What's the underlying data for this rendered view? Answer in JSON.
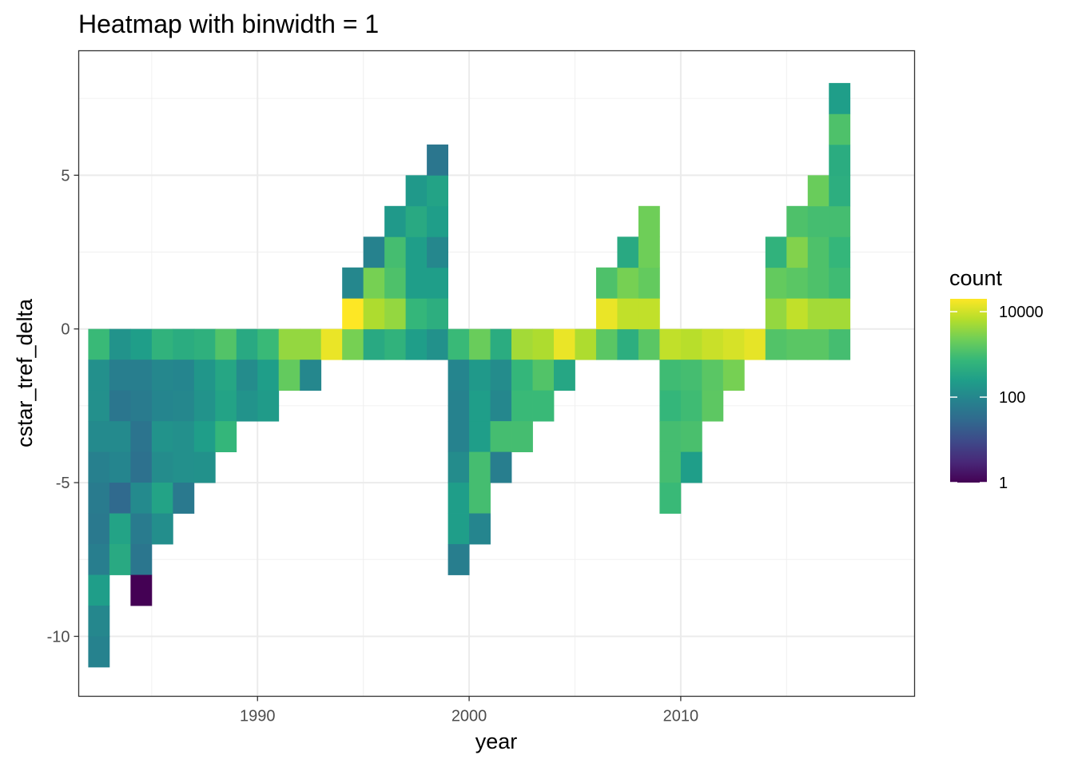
{
  "chart_data": {
    "type": "heatmap",
    "title": "Heatmap with binwidth = 1",
    "xlabel": "year",
    "ylabel": "cstar_tref_delta",
    "xlim": [
      1981.55,
      2021.05
    ],
    "ylim": [
      -11.95,
      9.05
    ],
    "x_ticks": [
      1990,
      2000,
      2010
    ],
    "x_tick_labels": [
      "1990",
      "2000",
      "2010"
    ],
    "y_ticks": [
      -10,
      -5,
      0,
      5
    ],
    "y_tick_labels": [
      "-10",
      "-5",
      "0",
      "5"
    ],
    "binwidth": 1,
    "fill_scale": "log10",
    "legend": {
      "title": "count",
      "breaks": [
        1,
        100,
        10000
      ],
      "labels": [
        "1",
        "100",
        "10000"
      ],
      "range": [
        1,
        20000
      ],
      "position": "right"
    },
    "colormap": "viridis",
    "colors": {
      "viridis": [
        "#440154",
        "#482878",
        "#3e4989",
        "#31688e",
        "#26828e",
        "#1f9e89",
        "#35b779",
        "#6ece58",
        "#b5de2b",
        "#fde725"
      ]
    },
    "cells": [
      {
        "x": 1983,
        "y": -1,
        "count": 800
      },
      {
        "x": 1983,
        "y": -2,
        "count": 140
      },
      {
        "x": 1983,
        "y": -3,
        "count": 140
      },
      {
        "x": 1983,
        "y": -4,
        "count": 110
      },
      {
        "x": 1983,
        "y": -5,
        "count": 75
      },
      {
        "x": 1983,
        "y": -6,
        "count": 60
      },
      {
        "x": 1983,
        "y": -7,
        "count": 55
      },
      {
        "x": 1983,
        "y": -8,
        "count": 70
      },
      {
        "x": 1983,
        "y": -9,
        "count": 250
      },
      {
        "x": 1983,
        "y": -10,
        "count": 100
      },
      {
        "x": 1983,
        "y": -11,
        "count": 80
      },
      {
        "x": 1984,
        "y": -1,
        "count": 160
      },
      {
        "x": 1984,
        "y": -2,
        "count": 70
      },
      {
        "x": 1984,
        "y": -3,
        "count": 50
      },
      {
        "x": 1984,
        "y": -4,
        "count": 110
      },
      {
        "x": 1984,
        "y": -5,
        "count": 90
      },
      {
        "x": 1984,
        "y": -6,
        "count": 30
      },
      {
        "x": 1984,
        "y": -7,
        "count": 300
      },
      {
        "x": 1984,
        "y": -8,
        "count": 400
      },
      {
        "x": 1985,
        "y": -1,
        "count": 250
      },
      {
        "x": 1985,
        "y": -2,
        "count": 70
      },
      {
        "x": 1985,
        "y": -3,
        "count": 60
      },
      {
        "x": 1985,
        "y": -4,
        "count": 45
      },
      {
        "x": 1985,
        "y": -5,
        "count": 40
      },
      {
        "x": 1985,
        "y": -6,
        "count": 110
      },
      {
        "x": 1985,
        "y": -7,
        "count": 60
      },
      {
        "x": 1985,
        "y": -8,
        "count": 50
      },
      {
        "x": 1985,
        "y": -9,
        "count": 1
      },
      {
        "x": 1986,
        "y": -1,
        "count": 600
      },
      {
        "x": 1986,
        "y": -2,
        "count": 100
      },
      {
        "x": 1986,
        "y": -3,
        "count": 90
      },
      {
        "x": 1986,
        "y": -4,
        "count": 160
      },
      {
        "x": 1986,
        "y": -5,
        "count": 120
      },
      {
        "x": 1986,
        "y": -6,
        "count": 300
      },
      {
        "x": 1986,
        "y": -7,
        "count": 130
      },
      {
        "x": 1987,
        "y": -1,
        "count": 450
      },
      {
        "x": 1987,
        "y": -2,
        "count": 90
      },
      {
        "x": 1987,
        "y": -3,
        "count": 100
      },
      {
        "x": 1987,
        "y": -4,
        "count": 140
      },
      {
        "x": 1987,
        "y": -5,
        "count": 140
      },
      {
        "x": 1987,
        "y": -6,
        "count": 55
      },
      {
        "x": 1988,
        "y": -1,
        "count": 550
      },
      {
        "x": 1988,
        "y": -2,
        "count": 180
      },
      {
        "x": 1988,
        "y": -3,
        "count": 160
      },
      {
        "x": 1988,
        "y": -4,
        "count": 250
      },
      {
        "x": 1988,
        "y": -5,
        "count": 150
      },
      {
        "x": 1989,
        "y": -1,
        "count": 1300
      },
      {
        "x": 1989,
        "y": -2,
        "count": 350
      },
      {
        "x": 1989,
        "y": -3,
        "count": 300
      },
      {
        "x": 1989,
        "y": -4,
        "count": 700
      },
      {
        "x": 1990,
        "y": -1,
        "count": 400
      },
      {
        "x": 1990,
        "y": -2,
        "count": 120
      },
      {
        "x": 1990,
        "y": -3,
        "count": 160
      },
      {
        "x": 1991,
        "y": -1,
        "count": 800
      },
      {
        "x": 1991,
        "y": -2,
        "count": 250
      },
      {
        "x": 1991,
        "y": -3,
        "count": 220
      },
      {
        "x": 1992,
        "y": -1,
        "count": 4000
      },
      {
        "x": 1992,
        "y": -2,
        "count": 1800
      },
      {
        "x": 1993,
        "y": -1,
        "count": 4000
      },
      {
        "x": 1993,
        "y": -2,
        "count": 100
      },
      {
        "x": 1994,
        "y": -1,
        "count": 15000
      },
      {
        "x": 1995,
        "y": -1,
        "count": 2500
      },
      {
        "x": 1995,
        "y": 0,
        "count": 20000
      },
      {
        "x": 1995,
        "y": 1,
        "count": 100
      },
      {
        "x": 1996,
        "y": -1,
        "count": 400
      },
      {
        "x": 1996,
        "y": 0,
        "count": 6000
      },
      {
        "x": 1996,
        "y": 1,
        "count": 2500
      },
      {
        "x": 1996,
        "y": 2,
        "count": 80
      },
      {
        "x": 1997,
        "y": -1,
        "count": 600
      },
      {
        "x": 1997,
        "y": 0,
        "count": 4000
      },
      {
        "x": 1997,
        "y": 1,
        "count": 1200
      },
      {
        "x": 1997,
        "y": 2,
        "count": 1000
      },
      {
        "x": 1997,
        "y": 3,
        "count": 200
      },
      {
        "x": 1998,
        "y": -1,
        "count": 250
      },
      {
        "x": 1998,
        "y": 0,
        "count": 700
      },
      {
        "x": 1998,
        "y": 1,
        "count": 250
      },
      {
        "x": 1998,
        "y": 2,
        "count": 250
      },
      {
        "x": 1998,
        "y": 3,
        "count": 400
      },
      {
        "x": 1998,
        "y": 4,
        "count": 200
      },
      {
        "x": 1999,
        "y": -1,
        "count": 150
      },
      {
        "x": 1999,
        "y": 0,
        "count": 500
      },
      {
        "x": 1999,
        "y": 1,
        "count": 250
      },
      {
        "x": 1999,
        "y": 2,
        "count": 100
      },
      {
        "x": 1999,
        "y": 3,
        "count": 250
      },
      {
        "x": 1999,
        "y": 4,
        "count": 300
      },
      {
        "x": 1999,
        "y": 5,
        "count": 50
      },
      {
        "x": 2000,
        "y": -1,
        "count": 800
      },
      {
        "x": 2000,
        "y": -2,
        "count": 90
      },
      {
        "x": 2000,
        "y": -3,
        "count": 80
      },
      {
        "x": 2000,
        "y": -4,
        "count": 80
      },
      {
        "x": 2000,
        "y": -5,
        "count": 120
      },
      {
        "x": 2000,
        "y": -6,
        "count": 250
      },
      {
        "x": 2000,
        "y": -7,
        "count": 250
      },
      {
        "x": 2000,
        "y": -8,
        "count": 70
      },
      {
        "x": 2001,
        "y": -1,
        "count": 2000
      },
      {
        "x": 2001,
        "y": -2,
        "count": 200
      },
      {
        "x": 2001,
        "y": -3,
        "count": 250
      },
      {
        "x": 2001,
        "y": -4,
        "count": 250
      },
      {
        "x": 2001,
        "y": -5,
        "count": 1000
      },
      {
        "x": 2001,
        "y": -6,
        "count": 1000
      },
      {
        "x": 2001,
        "y": -7,
        "count": 90
      },
      {
        "x": 2002,
        "y": -1,
        "count": 450
      },
      {
        "x": 2002,
        "y": -2,
        "count": 120
      },
      {
        "x": 2002,
        "y": -3,
        "count": 100
      },
      {
        "x": 2002,
        "y": -4,
        "count": 1000
      },
      {
        "x": 2002,
        "y": -5,
        "count": 70
      },
      {
        "x": 2003,
        "y": -1,
        "count": 5000
      },
      {
        "x": 2003,
        "y": -2,
        "count": 700
      },
      {
        "x": 2003,
        "y": -3,
        "count": 800
      },
      {
        "x": 2003,
        "y": -4,
        "count": 1000
      },
      {
        "x": 2004,
        "y": -1,
        "count": 6000
      },
      {
        "x": 2004,
        "y": -2,
        "count": 1300
      },
      {
        "x": 2004,
        "y": -3,
        "count": 800
      },
      {
        "x": 2005,
        "y": -1,
        "count": 15000
      },
      {
        "x": 2005,
        "y": -2,
        "count": 350
      },
      {
        "x": 2006,
        "y": -1,
        "count": 6000
      },
      {
        "x": 2007,
        "y": -1,
        "count": 1500
      },
      {
        "x": 2007,
        "y": 0,
        "count": 15000
      },
      {
        "x": 2007,
        "y": 1,
        "count": 1200
      },
      {
        "x": 2008,
        "y": -1,
        "count": 500
      },
      {
        "x": 2008,
        "y": 0,
        "count": 8000
      },
      {
        "x": 2008,
        "y": 1,
        "count": 2500
      },
      {
        "x": 2008,
        "y": 2,
        "count": 400
      },
      {
        "x": 2009,
        "y": -1,
        "count": 1500
      },
      {
        "x": 2009,
        "y": 0,
        "count": 8000
      },
      {
        "x": 2009,
        "y": 1,
        "count": 1800
      },
      {
        "x": 2009,
        "y": 2,
        "count": 2200
      },
      {
        "x": 2009,
        "y": 3,
        "count": 2200
      },
      {
        "x": 2010,
        "y": -1,
        "count": 8000
      },
      {
        "x": 2010,
        "y": -2,
        "count": 900
      },
      {
        "x": 2010,
        "y": -3,
        "count": 700
      },
      {
        "x": 2010,
        "y": -4,
        "count": 1000
      },
      {
        "x": 2010,
        "y": -5,
        "count": 1000
      },
      {
        "x": 2010,
        "y": -6,
        "count": 800
      },
      {
        "x": 2011,
        "y": -1,
        "count": 7000
      },
      {
        "x": 2011,
        "y": -2,
        "count": 1000
      },
      {
        "x": 2011,
        "y": -3,
        "count": 900
      },
      {
        "x": 2011,
        "y": -4,
        "count": 1100
      },
      {
        "x": 2011,
        "y": -5,
        "count": 250
      },
      {
        "x": 2012,
        "y": -1,
        "count": 9000
      },
      {
        "x": 2012,
        "y": -2,
        "count": 1500
      },
      {
        "x": 2012,
        "y": -3,
        "count": 1600
      },
      {
        "x": 2013,
        "y": -1,
        "count": 11000
      },
      {
        "x": 2013,
        "y": -2,
        "count": 2500
      },
      {
        "x": 2014,
        "y": -1,
        "count": 14000
      },
      {
        "x": 2015,
        "y": -1,
        "count": 1300
      },
      {
        "x": 2015,
        "y": 0,
        "count": 4000
      },
      {
        "x": 2015,
        "y": 1,
        "count": 1800
      },
      {
        "x": 2015,
        "y": 2,
        "count": 600
      },
      {
        "x": 2016,
        "y": -1,
        "count": 1500
      },
      {
        "x": 2016,
        "y": 0,
        "count": 8000
      },
      {
        "x": 2016,
        "y": 1,
        "count": 1500
      },
      {
        "x": 2016,
        "y": 2,
        "count": 3000
      },
      {
        "x": 2016,
        "y": 3,
        "count": 1200
      },
      {
        "x": 2017,
        "y": -1,
        "count": 1500
      },
      {
        "x": 2017,
        "y": 0,
        "count": 5000
      },
      {
        "x": 2017,
        "y": 1,
        "count": 1200
      },
      {
        "x": 2017,
        "y": 2,
        "count": 1200
      },
      {
        "x": 2017,
        "y": 3,
        "count": 1000
      },
      {
        "x": 2017,
        "y": 4,
        "count": 2000
      },
      {
        "x": 2018,
        "y": -1,
        "count": 1000
      },
      {
        "x": 2018,
        "y": 0,
        "count": 5000
      },
      {
        "x": 2018,
        "y": 1,
        "count": 900
      },
      {
        "x": 2018,
        "y": 2,
        "count": 700
      },
      {
        "x": 2018,
        "y": 3,
        "count": 1000
      },
      {
        "x": 2018,
        "y": 4,
        "count": 500
      },
      {
        "x": 2018,
        "y": 5,
        "count": 450
      },
      {
        "x": 2018,
        "y": 6,
        "count": 1200
      },
      {
        "x": 2018,
        "y": 7,
        "count": 250
      }
    ]
  }
}
